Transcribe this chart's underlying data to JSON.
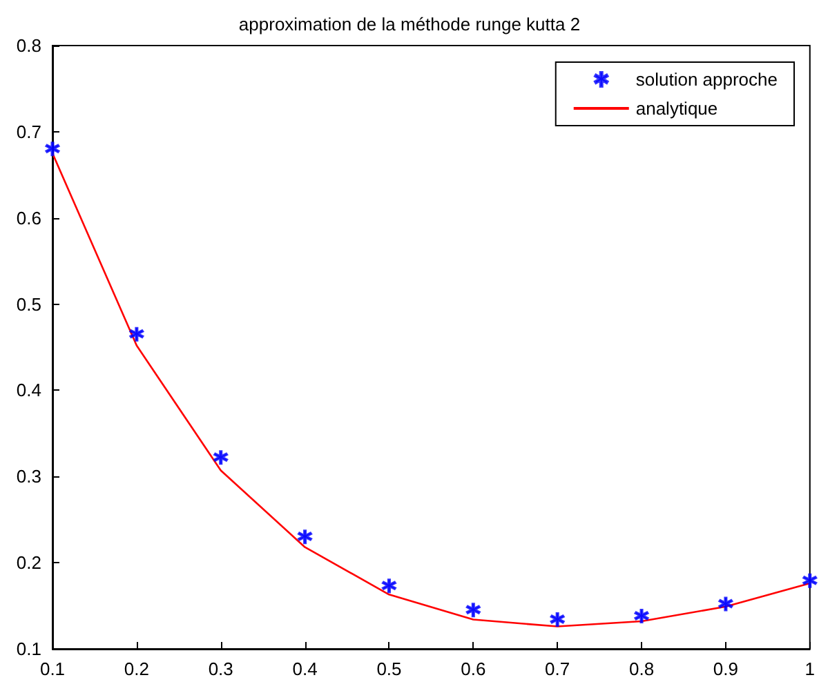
{
  "chart_data": {
    "type": "line",
    "title": "approximation de la méthode runge kutta 2",
    "x": [
      0.1,
      0.2,
      0.3,
      0.4,
      0.5,
      0.6,
      0.7,
      0.8,
      0.9,
      1
    ],
    "series": [
      {
        "name": "solution approche",
        "type": "scatter",
        "marker": "star",
        "color": "#0000ff",
        "values": [
          0.68,
          0.465,
          0.322,
          0.23,
          0.173,
          0.145,
          0.134,
          0.138,
          0.152,
          0.179
        ]
      },
      {
        "name": "analytique",
        "color": "#ff0000",
        "values": [
          0.675,
          0.452,
          0.307,
          0.218,
          0.163,
          0.134,
          0.126,
          0.132,
          0.149,
          0.176
        ]
      }
    ],
    "xlim": [
      0.1,
      1
    ],
    "xticks": [
      0.1,
      0.2,
      0.3,
      0.4,
      0.5,
      0.6,
      0.7,
      0.8,
      0.9,
      1
    ],
    "ylim": [
      0.1,
      0.8
    ],
    "yticks": [
      0.1,
      0.2,
      0.3,
      0.4,
      0.5,
      0.6,
      0.7,
      0.8
    ],
    "grid": false,
    "legend": "top right"
  }
}
